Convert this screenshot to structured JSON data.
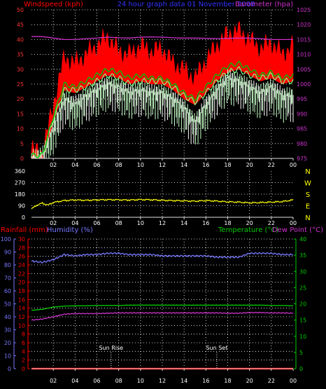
{
  "chart_data": [
    {
      "type": "line",
      "title": "24 hour graph data  01 November 2008",
      "left_label": "Windspeed (kph)",
      "right_label": "Barometer (hpa)",
      "ylim_left": [
        0,
        50
      ],
      "yticks_left": [
        "0",
        "5",
        "10",
        "15",
        "20",
        "25",
        "30",
        "35",
        "40",
        "45",
        "50"
      ],
      "ylim_right": [
        975,
        1025
      ],
      "yticks_right": [
        "975",
        "980",
        "985",
        "990",
        "995",
        "1000",
        "1005",
        "1010",
        "1015",
        "1020",
        "1025"
      ],
      "xticks": [
        "02",
        "04",
        "06",
        "08",
        "10",
        "12",
        "14",
        "16",
        "18",
        "20",
        "22",
        "00"
      ],
      "grid": true,
      "colors": {
        "gust": "#ff0000",
        "speed_avg": "#00c000",
        "speed_avg2": "#80ff80",
        "speed": "#c8ffc8",
        "barometer": "#cc33cc",
        "title": "#3333ff",
        "left_label": "#ff0000",
        "right_label": "#cc33cc"
      },
      "series": [
        {
          "key": "gust",
          "hours": [
            0,
            1,
            2,
            3,
            4,
            5,
            6,
            7,
            8,
            9,
            10,
            11,
            12,
            13,
            14,
            15,
            16,
            17,
            18,
            19,
            20,
            21,
            22,
            23,
            24
          ],
          "values": [
            3,
            2,
            18,
            34,
            32,
            35,
            38,
            41,
            36,
            35,
            38,
            36,
            37,
            32,
            30,
            27,
            33,
            38,
            42,
            43,
            40,
            37,
            39,
            35,
            38
          ]
        },
        {
          "key": "speed_avg",
          "hours": [
            0,
            1,
            2,
            3,
            4,
            5,
            6,
            7,
            8,
            9,
            10,
            11,
            12,
            13,
            14,
            15,
            16,
            17,
            18,
            19,
            20,
            21,
            22,
            23,
            24
          ],
          "values": [
            1,
            1,
            14,
            25,
            24,
            26,
            28,
            30,
            29,
            27,
            28,
            27,
            27,
            25,
            22,
            20,
            24,
            28,
            31,
            32,
            30,
            28,
            29,
            27,
            28
          ]
        },
        {
          "key": "speed_avg2",
          "hours": [
            0,
            1,
            2,
            3,
            4,
            5,
            6,
            7,
            8,
            9,
            10,
            11,
            12,
            13,
            14,
            15,
            16,
            17,
            18,
            19,
            20,
            21,
            22,
            23,
            24
          ],
          "values": [
            1,
            1,
            13,
            23,
            23,
            24,
            26,
            28,
            27,
            25,
            26,
            26,
            26,
            24,
            21,
            19,
            22,
            26,
            29,
            30,
            28,
            27,
            28,
            26,
            26
          ]
        },
        {
          "key": "speed",
          "hours": [
            0,
            1,
            2,
            3,
            4,
            5,
            6,
            7,
            8,
            9,
            10,
            11,
            12,
            13,
            14,
            15,
            16,
            17,
            18,
            19,
            20,
            21,
            22,
            23,
            24
          ],
          "values": [
            0,
            1,
            10,
            20,
            18,
            21,
            23,
            25,
            24,
            22,
            23,
            22,
            22,
            20,
            17,
            12,
            18,
            23,
            27,
            26,
            24,
            22,
            24,
            21,
            21
          ]
        },
        {
          "key": "barometer",
          "hours": [
            0,
            1,
            2,
            3,
            4,
            5,
            6,
            7,
            8,
            9,
            10,
            11,
            12,
            13,
            14,
            15,
            16,
            17,
            18,
            19,
            20,
            21,
            22,
            23,
            24
          ],
          "values": [
            1016,
            1016,
            1015.5,
            1015,
            1015,
            1015.3,
            1015.5,
            1015.8,
            1015.6,
            1015.5,
            1015.8,
            1015.9,
            1015.8,
            1015.6,
            1015.5,
            1015.5,
            1015.4,
            1015.3,
            1015.4,
            1015.5,
            1015.5,
            1015.3,
            1015,
            1015,
            1015
          ]
        }
      ]
    },
    {
      "type": "line",
      "ylim": [
        0,
        360
      ],
      "yticks": [
        "0",
        "90",
        "180",
        "270",
        "360"
      ],
      "compass": [
        "N",
        "W",
        "S",
        "E",
        "N"
      ],
      "xticks": [
        "02",
        "04",
        "06",
        "08",
        "10",
        "12",
        "14",
        "16",
        "18",
        "20",
        "22",
        "00"
      ],
      "grid": true,
      "colors": {
        "direction": "#ffff00",
        "compass": "#ffff00"
      },
      "series": [
        {
          "key": "direction",
          "hours": [
            0,
            0.5,
            1,
            1.5,
            2,
            3,
            4,
            5,
            6,
            7,
            8,
            9,
            10,
            11,
            12,
            13,
            14,
            15,
            16,
            17,
            18,
            19,
            20,
            21,
            22,
            23,
            24
          ],
          "values": [
            65,
            95,
            110,
            95,
            115,
            130,
            135,
            132,
            135,
            137,
            136,
            134,
            138,
            136,
            132,
            130,
            128,
            125,
            130,
            126,
            120,
            118,
            112,
            115,
            118,
            122,
            135
          ]
        }
      ]
    },
    {
      "type": "line",
      "labels_left": [
        "Rainfall (mm)",
        "Humidity (%)"
      ],
      "labels_right": [
        "Temperature (°C)",
        "Dew Point (°C)"
      ],
      "ylim_humidity": [
        0,
        100
      ],
      "yticks_humidity": [
        "0",
        "10",
        "20",
        "30",
        "40",
        "50",
        "60",
        "70",
        "80",
        "90",
        "100"
      ],
      "ylim_rain": [
        0,
        30
      ],
      "yticks_rain": [
        "0",
        "2",
        "4",
        "6",
        "8",
        "10",
        "12",
        "14",
        "16",
        "18",
        "20",
        "22",
        "24",
        "26",
        "28",
        "30"
      ],
      "ylim_temp": [
        0,
        40
      ],
      "yticks_temp": [
        "0",
        "5",
        "10",
        "15",
        "20",
        "25",
        "30",
        "35",
        "40"
      ],
      "xticks": [
        "02",
        "04",
        "06",
        "08",
        "10",
        "12",
        "14",
        "16",
        "18",
        "20",
        "22",
        "00"
      ],
      "annotations": [
        "Sun Rise",
        "Sun Set"
      ],
      "annotation_hours": [
        7.3,
        17.0
      ],
      "grid": true,
      "colors": {
        "humidity": "#7777ff",
        "temperature": "#00cc00",
        "dewpoint": "#cc33cc",
        "rainfall": "#ff0000",
        "rain_axis": "#ff0000",
        "humidity_axis": "#7777ff",
        "temp_axis": "#00cc00"
      },
      "series": [
        {
          "key": "humidity",
          "hours": [
            0,
            1,
            2,
            3,
            4,
            5,
            6,
            7,
            8,
            9,
            10,
            11,
            12,
            13,
            14,
            15,
            16,
            17,
            18,
            19,
            20,
            21,
            22,
            23,
            24
          ],
          "values": [
            83,
            82,
            84,
            88,
            87,
            88,
            88,
            89,
            89,
            88,
            88,
            88,
            87,
            87,
            87,
            87,
            87,
            86,
            86,
            86,
            89,
            89,
            89,
            88,
            88
          ]
        },
        {
          "key": "temperature",
          "hours": [
            0,
            1,
            2,
            3,
            4,
            5,
            6,
            7,
            8,
            9,
            10,
            11,
            12,
            13,
            14,
            15,
            16,
            17,
            18,
            19,
            20,
            21,
            22,
            23,
            24
          ],
          "values": [
            18,
            18.3,
            19,
            19.3,
            19.4,
            19.4,
            19.5,
            19.5,
            19.5,
            19.6,
            19.6,
            19.6,
            19.6,
            19.6,
            19.6,
            19.6,
            19.6,
            19.6,
            19.6,
            19.6,
            19.6,
            19.6,
            19.5,
            19.5,
            19.4
          ]
        },
        {
          "key": "dewpoint",
          "hours": [
            0,
            1,
            2,
            3,
            4,
            5,
            6,
            7,
            8,
            9,
            10,
            11,
            12,
            13,
            14,
            15,
            16,
            17,
            18,
            19,
            20,
            21,
            22,
            23,
            24
          ],
          "values": [
            15,
            15.3,
            16,
            16.8,
            17,
            17,
            17,
            17.1,
            17.2,
            17.2,
            17.2,
            17.2,
            17.2,
            17.2,
            17.2,
            17.2,
            17.2,
            17.2,
            17.1,
            17.1,
            17.3,
            17.3,
            17.2,
            17.2,
            17.1
          ]
        },
        {
          "key": "rainfall",
          "hours": [
            0,
            24
          ],
          "values": [
            0,
            0
          ]
        }
      ]
    }
  ]
}
